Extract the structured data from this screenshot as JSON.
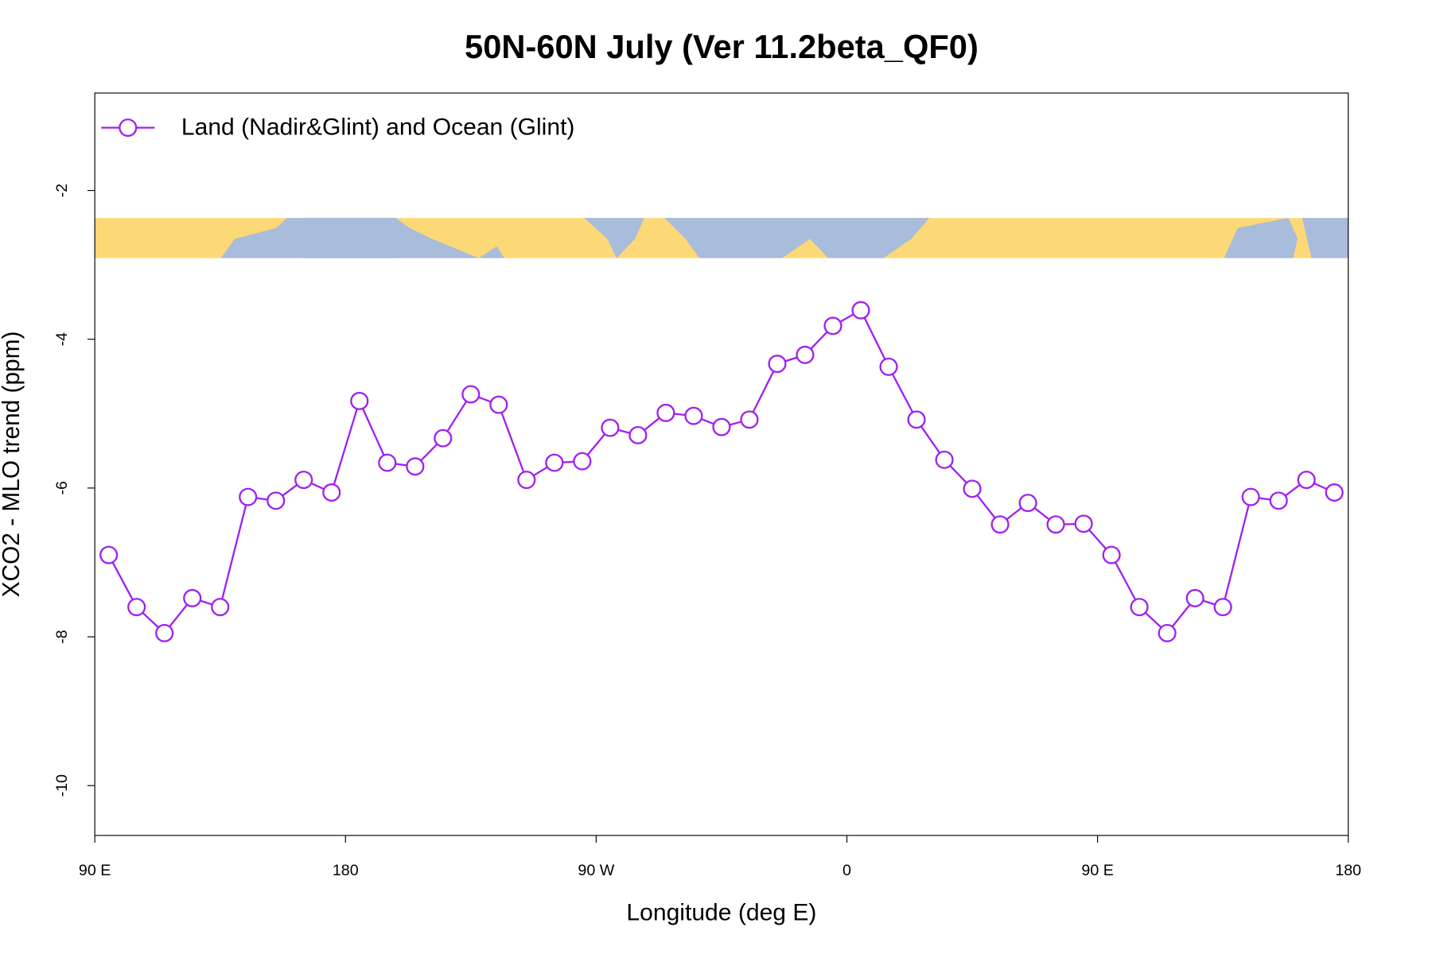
{
  "chart_data": {
    "type": "line",
    "title": "50N-60N July (Ver 11.2beta_QF0)",
    "x_label": "Longitude (deg E)",
    "y_label": "XCO2 - MLO trend (ppm)",
    "x": [
      95,
      105,
      115,
      125,
      135,
      145,
      155,
      165,
      175,
      185,
      195,
      205,
      215,
      225,
      235,
      245,
      255,
      265,
      275,
      285,
      295,
      305,
      315,
      325,
      335,
      345,
      355,
      365,
      375,
      385,
      395,
      405,
      415,
      425,
      435,
      445,
      455,
      465,
      475,
      485,
      495,
      505,
      515,
      525,
      535
    ],
    "series": [
      {
        "name": "Land (Nadir&Glint) and Ocean (Glint)",
        "color": "#a020f0",
        "values": [
          -6.9,
          -7.6,
          -7.95,
          -7.48,
          -7.6,
          -6.12,
          -6.17,
          -5.89,
          -6.06,
          -4.83,
          -5.66,
          -5.71,
          -5.33,
          -4.74,
          -4.88,
          -5.89,
          -5.66,
          -5.64,
          -5.19,
          -5.29,
          -4.99,
          -5.03,
          -5.18,
          -5.08,
          -4.33,
          -4.21,
          -3.82,
          -3.61,
          -4.37,
          -5.08,
          -5.62,
          -6.01,
          -6.49,
          -6.2,
          -6.49,
          -6.48,
          -6.9,
          -7.6,
          -7.95,
          -7.48,
          -7.6,
          -6.12,
          -6.17,
          -5.89,
          -6.06
        ]
      }
    ],
    "xlim": [
      90,
      540
    ],
    "xticks": [
      {
        "value": 90,
        "label": "90 E"
      },
      180,
      {
        "value": 270,
        "label": "90 W"
      },
      {
        "value": 360,
        "label": "0"
      },
      {
        "value": 450,
        "label": "90 E"
      },
      {
        "value": 540,
        "label": "180"
      }
    ],
    "ylim": [
      -10.67,
      -0.69
    ],
    "yticks": [
      -2,
      -4,
      -6,
      -8,
      -10
    ],
    "legend": "top-left",
    "marker": "circle"
  }
}
